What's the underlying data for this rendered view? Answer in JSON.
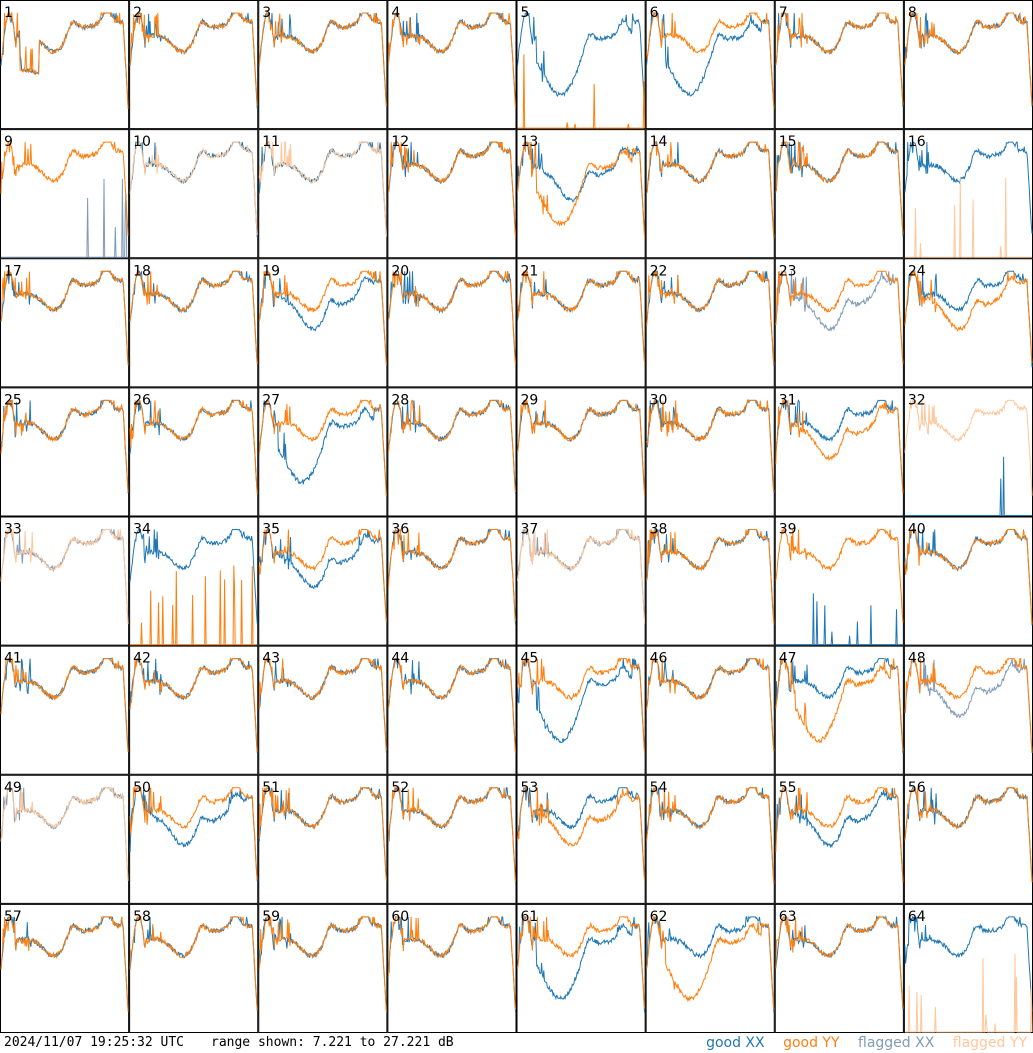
{
  "chart_data": {
    "type": "line",
    "grid": {
      "rows": 8,
      "cols": 8
    },
    "panel_labels": [
      "1",
      "2",
      "3",
      "4",
      "5",
      "6",
      "7",
      "8",
      "9",
      "10",
      "11",
      "12",
      "13",
      "14",
      "15",
      "16",
      "17",
      "18",
      "19",
      "20",
      "21",
      "22",
      "23",
      "24",
      "25",
      "26",
      "27",
      "28",
      "29",
      "30",
      "31",
      "32",
      "33",
      "34",
      "35",
      "36",
      "37",
      "38",
      "39",
      "40",
      "41",
      "42",
      "43",
      "44",
      "45",
      "46",
      "47",
      "48",
      "49",
      "50",
      "51",
      "52",
      "53",
      "54",
      "55",
      "56",
      "57",
      "58",
      "59",
      "60",
      "61",
      "62",
      "63",
      "64"
    ],
    "ylim_db": [
      7.221,
      27.221
    ],
    "series": [
      {
        "name": "good XX",
        "color": "#1f77b4"
      },
      {
        "name": "good YY",
        "color": "#ff7f0e"
      },
      {
        "name": "flagged XX",
        "color": "#7f9bb6"
      },
      {
        "name": "flagged YY",
        "color": "#ffc79b"
      }
    ],
    "panel_status": {
      "xx": [
        "good",
        "good",
        "good",
        "good",
        "good",
        "good",
        "good",
        "good",
        "flagged",
        "good",
        "good",
        "good",
        "good",
        "good",
        "good",
        "good",
        "good",
        "good",
        "good",
        "good",
        "good",
        "good",
        "flagged",
        "good",
        "good",
        "good",
        "good",
        "good",
        "good",
        "good",
        "good",
        "good",
        "flagged",
        "good",
        "good",
        "good",
        "flagged",
        "good",
        "good",
        "good",
        "good",
        "good",
        "good",
        "good",
        "good",
        "good",
        "good",
        "flagged",
        "flagged",
        "good",
        "good",
        "good",
        "good",
        "good",
        "good",
        "good",
        "good",
        "good",
        "good",
        "good",
        "good",
        "good",
        "good",
        "good"
      ],
      "yy": [
        "good",
        "good",
        "good",
        "good",
        "good",
        "good",
        "good",
        "good",
        "good",
        "flagged",
        "flagged",
        "good",
        "good",
        "good",
        "good",
        "flagged",
        "good",
        "good",
        "good",
        "good",
        "good",
        "good",
        "good",
        "good",
        "good",
        "good",
        "good",
        "good",
        "good",
        "good",
        "good",
        "flagged",
        "flagged",
        "good",
        "good",
        "good",
        "flagged",
        "good",
        "good",
        "good",
        "good",
        "good",
        "good",
        "good",
        "good",
        "good",
        "good",
        "good",
        "flagged",
        "good",
        "good",
        "good",
        "good",
        "good",
        "good",
        "good",
        "good",
        "good",
        "good",
        "good",
        "good",
        "good",
        "good",
        "flagged"
      ]
    },
    "panel_shape": {
      "xx": [
        "dip",
        "normal",
        "normal",
        "normal",
        "deep",
        "deep",
        "normal",
        "normal",
        "spiky",
        "normal",
        "normal",
        "normal",
        "low",
        "normal",
        "normal",
        "normal",
        "normal",
        "normal",
        "low",
        "normal",
        "normal",
        "normal",
        "low",
        "normal",
        "normal",
        "normal",
        "deep",
        "normal",
        "normal",
        "normal",
        "normal",
        "spiky",
        "normal",
        "normal",
        "low",
        "normal",
        "normal",
        "normal",
        "spiky",
        "normal",
        "normal",
        "normal",
        "normal",
        "normal",
        "deep",
        "normal",
        "normal",
        "low",
        "normal",
        "low",
        "normal",
        "normal",
        "normal",
        "normal",
        "low",
        "normal",
        "normal",
        "normal",
        "normal",
        "normal",
        "deep",
        "normal",
        "normal",
        "normal"
      ],
      "yy": [
        "dip",
        "normal",
        "normal",
        "normal",
        "spiky",
        "normal",
        "normal",
        "normal",
        "normal",
        "normal",
        "normal",
        "normal",
        "deep",
        "normal",
        "normal",
        "spiky",
        "normal",
        "normal",
        "normal",
        "normal",
        "normal",
        "normal",
        "normal",
        "low",
        "normal",
        "normal",
        "normal",
        "normal",
        "normal",
        "normal",
        "low",
        "normal",
        "normal",
        "spiky",
        "normal",
        "normal",
        "normal",
        "normal",
        "normal",
        "normal",
        "normal",
        "normal",
        "normal",
        "normal",
        "normal",
        "normal",
        "deep",
        "normal",
        "normal",
        "normal",
        "normal",
        "normal",
        "low",
        "normal",
        "normal",
        "normal",
        "normal",
        "normal",
        "normal",
        "normal",
        "normal",
        "deep",
        "normal",
        "spiky"
      ]
    }
  },
  "footer": {
    "timestamp": "2024/11/07 19:25:32 UTC",
    "range_text": "range shown: 7.221 to 27.221 dB"
  },
  "legend": {
    "good_xx": "good XX",
    "good_yy": "good YY",
    "flagged_xx": "flagged XX",
    "flagged_yy": "flagged YY"
  }
}
